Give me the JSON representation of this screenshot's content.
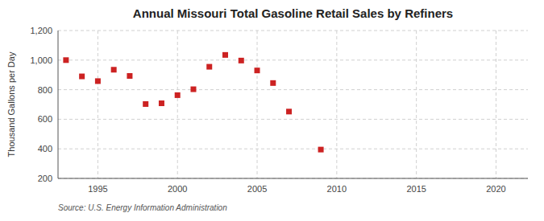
{
  "chart_data": {
    "type": "scatter",
    "title": "Annual Missouri Total Gasoline Retail Sales by Refiners",
    "ylabel": "Thousand Gallons per Day",
    "annotations": [
      "Source: U.S. Energy Information Administration"
    ],
    "x": [
      1993,
      1994,
      1995,
      1996,
      1997,
      1998,
      1999,
      2000,
      2001,
      2002,
      2003,
      2004,
      2005,
      2006,
      2007,
      2009
    ],
    "values": [
      1000,
      890,
      858,
      935,
      893,
      703,
      708,
      763,
      803,
      955,
      1035,
      997,
      930,
      845,
      652,
      395
    ],
    "color": "#cc2222",
    "marker": "square",
    "xlim": [
      1992.5,
      2022
    ],
    "ylim": [
      200,
      1200
    ],
    "xticks": [
      1995,
      2000,
      2005,
      2010,
      2015,
      2020
    ],
    "yticks": [
      200,
      400,
      600,
      800,
      {
        "value": 1000,
        "label": "1,000"
      },
      {
        "value": 1200,
        "label": "1,200"
      }
    ],
    "grid": true
  }
}
